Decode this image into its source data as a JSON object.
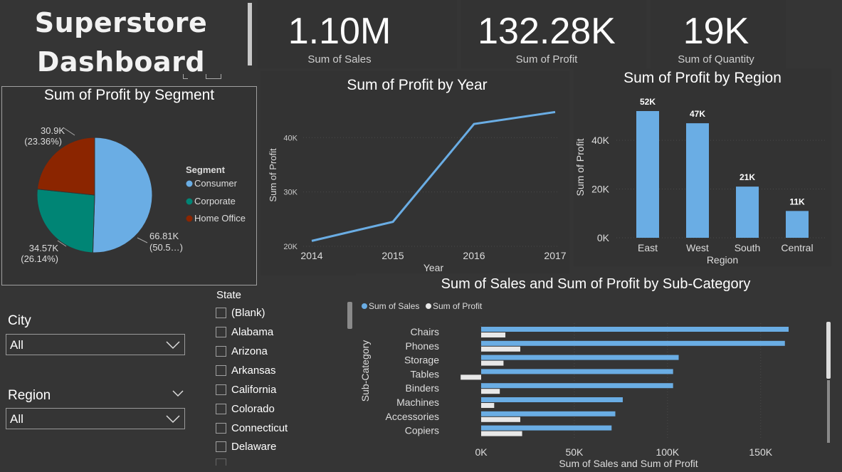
{
  "dashboard": {
    "title_line1": "Superstore",
    "title_line2": "Dashboard"
  },
  "kpis": [
    {
      "value": "1.10M",
      "label": "Sum of Sales"
    },
    {
      "value": "132.28K",
      "label": "Sum of Profit"
    },
    {
      "value": "19K",
      "label": "Sum of Quantity"
    }
  ],
  "segment_chart": {
    "title": "Sum of Profit by Segment",
    "legend_title": "Segment",
    "labels": {
      "home_office": [
        "30.9K",
        "(23.36%)"
      ],
      "corporate": [
        "34.57K",
        "(26.14%)"
      ],
      "consumer": [
        "66.81K",
        "(50.5…)"
      ]
    }
  },
  "year_chart": {
    "title": "Sum of Profit by Year"
  },
  "region_chart": {
    "title": "Sum of Profit by Region"
  },
  "subcat_chart": {
    "title": "Sum of Sales and Sum of Profit by Sub-Category",
    "legend": [
      "Sum of Sales",
      "Sum of Profit"
    ]
  },
  "filters": {
    "city": {
      "label": "City",
      "value": "All"
    },
    "region": {
      "label": "Region",
      "value": "All"
    },
    "state": {
      "label": "State",
      "items": [
        "(Blank)",
        "Alabama",
        "Arizona",
        "Arkansas",
        "California",
        "Colorado",
        "Connecticut",
        "Delaware"
      ]
    }
  },
  "colors": {
    "background": "#353535",
    "consumer": "#6aade4",
    "corporate": "#008575",
    "home_office": "#8b2500",
    "sales": "#6aade4",
    "profit": "#e8e8e8"
  },
  "chart_data": [
    {
      "type": "pie",
      "title": "Sum of Profit by Segment",
      "legend_title": "Segment",
      "categories": [
        "Consumer",
        "Corporate",
        "Home Office"
      ],
      "values": [
        66.81,
        34.57,
        30.9
      ],
      "labels": [
        "66.81K (50.5…)",
        "34.57K (26.14%)",
        "30.9K (23.36%)"
      ],
      "legend_position": "right"
    },
    {
      "type": "line",
      "title": "Sum of Profit by Year",
      "xlabel": "Year",
      "ylabel": "Sum of Profit",
      "x": [
        "2014",
        "2015",
        "2016",
        "2017"
      ],
      "values": [
        21000,
        24500,
        42500,
        44700
      ],
      "yticks": [
        "20K",
        "30K",
        "40K"
      ],
      "ylim": [
        20000,
        47500
      ],
      "grid": true
    },
    {
      "type": "bar",
      "title": "Sum of Profit by Region",
      "xlabel": "Region",
      "ylabel": "Sum of Profit",
      "categories": [
        "East",
        "West",
        "South",
        "Central"
      ],
      "values": [
        52000,
        47000,
        21000,
        11000
      ],
      "data_labels": [
        "52K",
        "47K",
        "21K",
        "11K"
      ],
      "yticks": [
        "0K",
        "20K",
        "40K"
      ],
      "ylim": [
        0,
        52000
      ],
      "grid": true
    },
    {
      "type": "bar",
      "orientation": "horizontal",
      "title": "Sum of Sales and Sum of Profit by Sub-Category",
      "xlabel": "Sum of Sales and Sum of Profit",
      "ylabel": "Sub-Category",
      "categories": [
        "Chairs",
        "Phones",
        "Storage",
        "Tables",
        "Binders",
        "Machines",
        "Accessories",
        "Copiers"
      ],
      "series": [
        {
          "name": "Sum of Sales",
          "values": [
            165000,
            163000,
            106000,
            103000,
            103000,
            76000,
            72000,
            70000
          ]
        },
        {
          "name": "Sum of Profit",
          "values": [
            13000,
            21000,
            12000,
            -11000,
            10000,
            7000,
            21000,
            22000
          ]
        }
      ],
      "xticks": [
        "0K",
        "50K",
        "100K",
        "150K"
      ],
      "xlim": [
        -12000,
        170000
      ],
      "legend_position": "top-left",
      "grid": true
    }
  ]
}
